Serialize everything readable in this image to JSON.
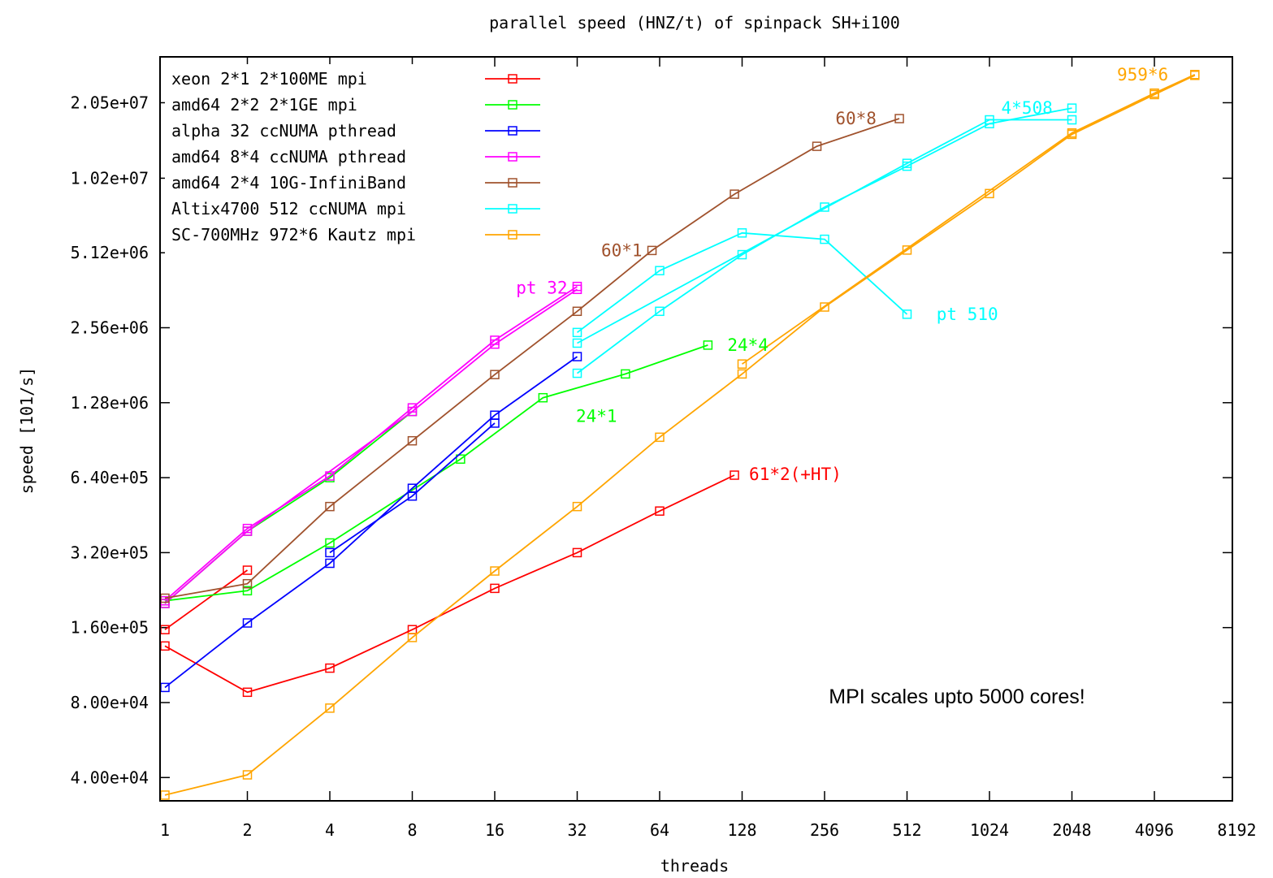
{
  "chart_data": {
    "type": "line",
    "title": "parallel speed (HNZ/t) of spinpack SH+i100",
    "xlabel": "threads",
    "ylabel": "speed [101/s]",
    "x_scale": "log2",
    "y_scale": "log",
    "xlim": [
      1,
      8192
    ],
    "ylim": [
      34000,
      30000000
    ],
    "x_ticks": [
      "1",
      "2",
      "4",
      "8",
      "16",
      "32",
      "64",
      "128",
      "256",
      "512",
      "1024",
      "2048",
      "4096",
      "8192"
    ],
    "y_ticks": [
      "4.00e+04",
      "8.00e+04",
      "1.60e+05",
      "3.20e+05",
      "6.40e+05",
      "1.28e+06",
      "2.56e+06",
      "5.12e+06",
      "1.02e+07",
      "2.05e+07"
    ],
    "grid": false,
    "legend_position": "top-left",
    "series": [
      {
        "name": "xeon  2*1 2*100ME mpi",
        "color": "#ff0000",
        "segments": [
          [
            [
              1,
              135000
            ],
            [
              2,
              88000
            ],
            [
              4,
              110000
            ],
            [
              8,
              157000
            ],
            [
              16,
              230000
            ],
            [
              32,
              320000
            ],
            [
              64,
              470000
            ],
            [
              120,
              655000
            ]
          ],
          [
            [
              1,
              157000
            ],
            [
              2,
              272000
            ]
          ]
        ]
      },
      {
        "name": "amd64 2*2 2*1GE   mpi",
        "color": "#00ff00",
        "segments": [
          [
            [
              1,
              205000
            ],
            [
              2,
              225000
            ],
            [
              4,
              350000
            ],
            [
              12,
              760000
            ],
            [
              24,
              1340000
            ],
            [
              48,
              1670000
            ],
            [
              96,
              2180000
            ]
          ],
          [
            [
              1,
              200000
            ],
            [
              2,
              390000
            ],
            [
              4,
              640000
            ],
            [
              8,
              1180000
            ]
          ]
        ]
      },
      {
        "name": "alpha 32  ccNUMA pthread",
        "color": "#0000ff",
        "segments": [
          [
            [
              1,
              92000
            ],
            [
              2,
              167000
            ],
            [
              4,
              290000
            ],
            [
              8,
              580000
            ],
            [
              16,
              1140000
            ],
            [
              32,
              1960000
            ]
          ],
          [
            [
              4,
              320000
            ],
            [
              8,
              540000
            ],
            [
              16,
              1060000
            ]
          ]
        ]
      },
      {
        "name": "amd64 8*4 ccNUMA pthread",
        "color": "#ff00ff",
        "segments": [
          [
            [
              1,
              205000
            ],
            [
              2,
              400000
            ],
            [
              4,
              650000
            ],
            [
              8,
              1220000
            ],
            [
              16,
              2280000
            ],
            [
              32,
              3750000
            ]
          ],
          [
            [
              1,
              200000
            ],
            [
              2,
              390000
            ],
            [
              8,
              1180000
            ],
            [
              16,
              2200000
            ],
            [
              32,
              3650000
            ]
          ]
        ]
      },
      {
        "name": "amd64 2*4 10G-InfiniBand",
        "color": "#a0522d",
        "segments": [
          [
            [
              1,
              210000
            ],
            [
              2,
              240000
            ],
            [
              4,
              490000
            ],
            [
              8,
              900000
            ],
            [
              16,
              1660000
            ],
            [
              32,
              2980000
            ],
            [
              60,
              5230000
            ],
            [
              120,
              8800000
            ],
            [
              240,
              13700000
            ],
            [
              480,
              17700000
            ]
          ]
        ]
      },
      {
        "name": "Altix4700 512 ccNUMA  mpi",
        "color": "#00ffff",
        "segments": [
          [
            [
              32,
              2450000
            ],
            [
              64,
              4340000
            ],
            [
              128,
              6150000
            ],
            [
              256,
              5800000
            ],
            [
              512,
              2900000
            ]
          ],
          [
            [
              32,
              1680000
            ],
            [
              64,
              2980000
            ],
            [
              128,
              5030000
            ],
            [
              256,
              7810000
            ],
            [
              512,
              11400000
            ],
            [
              1024,
              16900000
            ],
            [
              2048,
              19500000
            ]
          ],
          [
            [
              32,
              2220000
            ],
            [
              512,
              11700000
            ],
            [
              1024,
              17500000
            ],
            [
              2048,
              17500000
            ]
          ]
        ]
      },
      {
        "name": "SC-700MHz 972*6 Kautz mpi",
        "color": "#ffa500",
        "segments": [
          [
            [
              1,
              34000
            ],
            [
              2,
              41000
            ],
            [
              4,
              76000
            ],
            [
              8,
              146000
            ],
            [
              16,
              270000
            ],
            [
              32,
              490000
            ],
            [
              64,
              930000
            ],
            [
              128,
              1670000
            ],
            [
              256,
              3100000
            ],
            [
              512,
              5250000
            ],
            [
              1024,
              8850000
            ],
            [
              2048,
              15300000
            ],
            [
              4096,
              22100000
            ],
            [
              5754,
              26400000
            ]
          ],
          [
            [
              128,
              1830000
            ],
            [
              2048,
              15500000
            ],
            [
              4096,
              22400000
            ],
            [
              5754,
              26600000
            ]
          ]
        ]
      }
    ],
    "annotations": [
      {
        "text": "61*2(+HT)",
        "color": "#ff0000",
        "x": 120,
        "y": 660000,
        "align": "start"
      },
      {
        "text": "24*1",
        "color": "#00ff00",
        "x": 28,
        "y": 1130000,
        "align": "start"
      },
      {
        "text": "24*4",
        "color": "#00ff00",
        "x": 100,
        "y": 2180000,
        "align": "start"
      },
      {
        "text": "pt 32",
        "color": "#ff00ff",
        "x": 32,
        "y": 3700000,
        "align": "end"
      },
      {
        "text": "60*1",
        "color": "#a0522d",
        "x": 60,
        "y": 5230000,
        "align": "end"
      },
      {
        "text": "60*8",
        "color": "#a0522d",
        "x": 430,
        "y": 17700000,
        "align": "end"
      },
      {
        "text": "pt 510",
        "color": "#00ffff",
        "x": 580,
        "y": 2900000,
        "align": "start"
      },
      {
        "text": "4*508",
        "color": "#00ffff",
        "x": 1000,
        "y": 19500000,
        "align": "start"
      },
      {
        "text": "959*6",
        "color": "#ffa500",
        "x": 5000,
        "y": 26600000,
        "align": "end"
      }
    ],
    "note": "MPI scales upto 5000 cores!"
  }
}
